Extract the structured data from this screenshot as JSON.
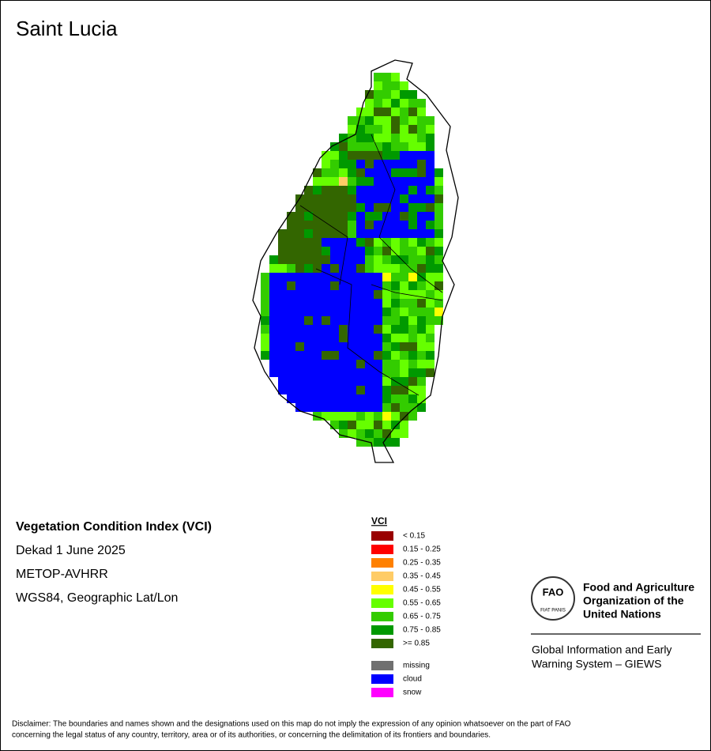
{
  "title": "Saint Lucia",
  "info": [
    "Vegetation Condition Index (VCI)",
    "Dekad 1 June 2025",
    "METOP-AVHRR",
    "WGS84, Geographic Lat/Lon"
  ],
  "legend": {
    "title": "VCI",
    "classes": [
      {
        "label": "< 0.15",
        "color": "#990000"
      },
      {
        "label": "0.15 - 0.25",
        "color": "#ff0000"
      },
      {
        "label": "0.25 - 0.35",
        "color": "#ff8000"
      },
      {
        "label": "0.35 - 0.45",
        "color": "#ffcc66"
      },
      {
        "label": "0.45 - 0.55",
        "color": "#ffff00"
      },
      {
        "label": "0.55 - 0.65",
        "color": "#66ff00"
      },
      {
        "label": "0.65 - 0.75",
        "color": "#33cc00"
      },
      {
        "label": "0.75 - 0.85",
        "color": "#009900"
      },
      {
        "label": ">= 0.85",
        "color": "#336600"
      }
    ],
    "other": [
      {
        "label": "missing",
        "color": "#707070"
      },
      {
        "label": "cloud",
        "color": "#0000ff"
      },
      {
        "label": "snow",
        "color": "#ff00ff"
      }
    ]
  },
  "logo": {
    "emblem": "FAO",
    "motto": "FIAT PANIS",
    "organization": [
      "Food and Agriculture",
      "Organization of the",
      "United Nations"
    ],
    "system": [
      "Global Information and Early",
      "Warning System – GIEWS"
    ]
  },
  "disclaimer": [
    "Disclaimer: The boundaries and names shown and the designations used on this map do not imply the expression of any opinion whatsoever on the part of FAO",
    "concerning the legal status of any country, territory, area or of its authorities, or concerning the delimitation of its frontiers and boundaries."
  ]
}
